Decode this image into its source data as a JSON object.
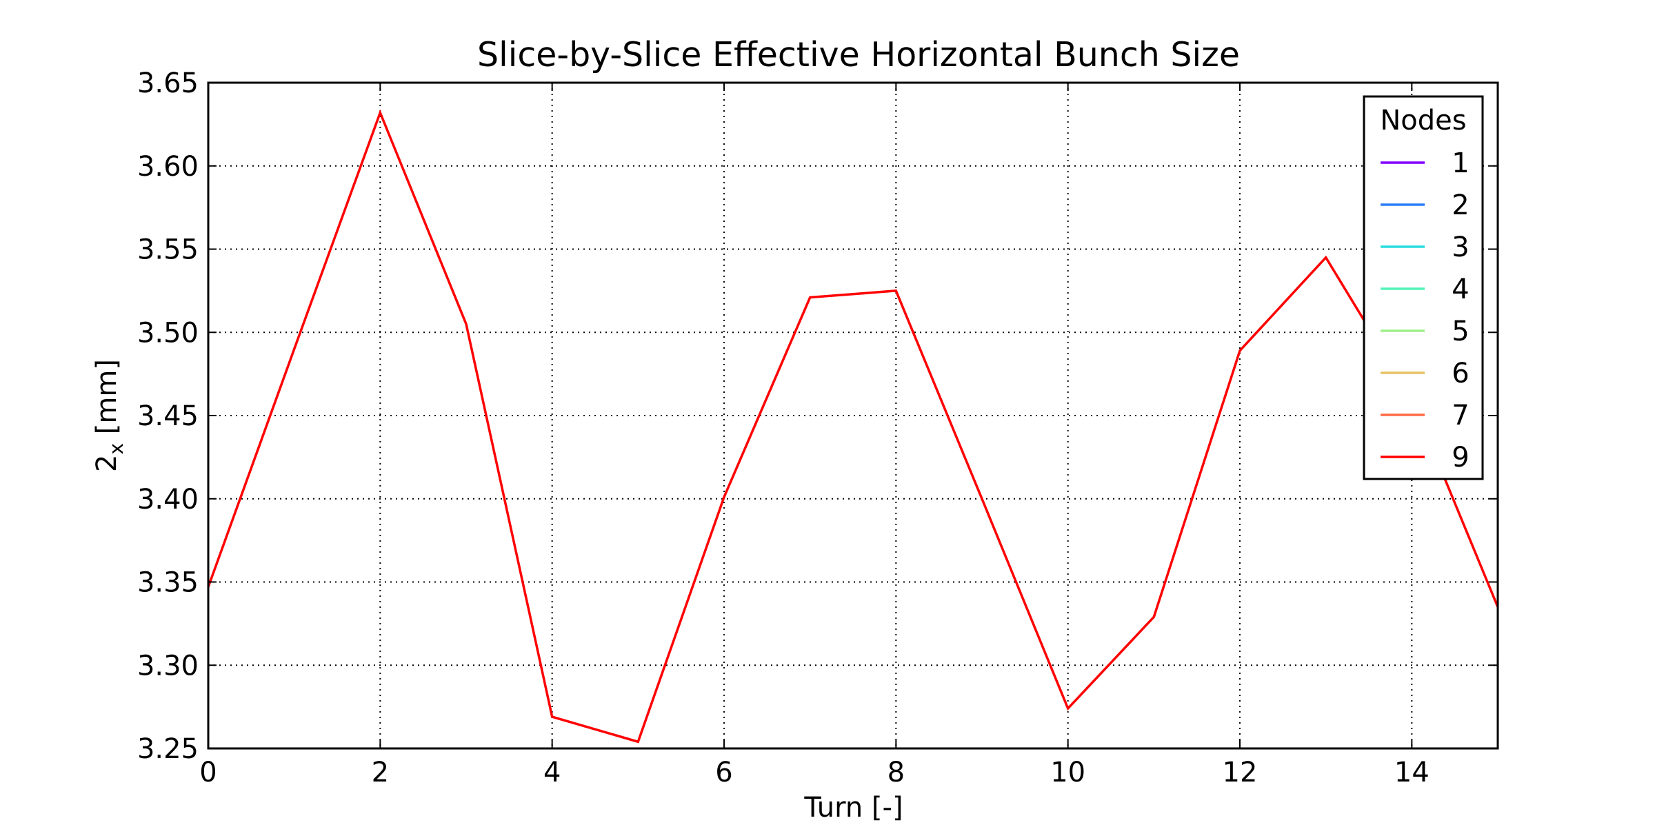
{
  "chart_data": {
    "type": "line",
    "title": "Slice-by-Slice Effective Horizontal Bunch Size",
    "xlabel": "Turn [-]",
    "ylabel_main": "2",
    "ylabel_sub": "x",
    "ylabel_unit": " [mm]",
    "xlim": [
      0,
      15
    ],
    "ylim": [
      3.25,
      3.65
    ],
    "xticks": [
      0,
      2,
      4,
      6,
      8,
      10,
      12,
      14
    ],
    "xtick_labels": [
      "0",
      "2",
      "4",
      "6",
      "8",
      "10",
      "12",
      "14"
    ],
    "yticks": [
      3.25,
      3.3,
      3.35,
      3.4,
      3.45,
      3.5,
      3.55,
      3.6,
      3.65
    ],
    "ytick_labels": [
      "3.25",
      "3.30",
      "3.35",
      "3.40",
      "3.45",
      "3.50",
      "3.55",
      "3.60",
      "3.65"
    ],
    "grid": true,
    "legend": {
      "title": "Nodes",
      "placement": "top-right",
      "entries": [
        {
          "label": "1",
          "color": "#8000ff"
        },
        {
          "label": "2",
          "color": "#2c7ef7"
        },
        {
          "label": "3",
          "color": "#2adddd"
        },
        {
          "label": "4",
          "color": "#54f3b8"
        },
        {
          "label": "5",
          "color": "#9ff08a"
        },
        {
          "label": "6",
          "color": "#e6c266"
        },
        {
          "label": "7",
          "color": "#ff6a45"
        },
        {
          "label": "9",
          "color": "#ff0000"
        }
      ]
    },
    "series": [
      {
        "name": "9",
        "color": "#ff0000",
        "x": [
          0,
          1,
          2,
          3,
          4,
          5,
          6,
          7,
          8,
          9,
          10,
          11,
          12,
          13,
          14,
          15
        ],
        "y": [
          3.347,
          3.49,
          3.632,
          3.505,
          3.269,
          3.254,
          3.401,
          3.521,
          3.525,
          3.4,
          3.274,
          3.329,
          3.489,
          3.545,
          3.46,
          3.335
        ]
      }
    ]
  }
}
